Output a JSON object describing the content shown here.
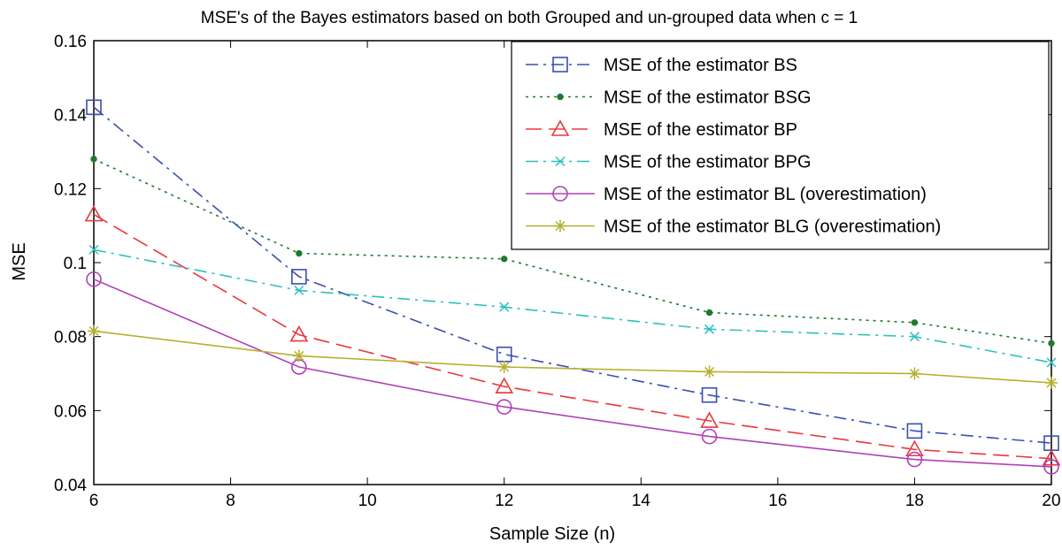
{
  "chart_data": {
    "type": "line",
    "title": "MSE's of the Bayes estimators based on both Grouped and un-grouped data when c = 1",
    "xlabel": "Sample Size (n)",
    "ylabel": "MSE",
    "xlim": [
      6,
      20
    ],
    "ylim": [
      0.04,
      0.16
    ],
    "xticks": [
      6,
      8,
      10,
      12,
      14,
      16,
      18,
      20
    ],
    "xtick_labels": [
      "6",
      "8",
      "10",
      "12",
      "14",
      "16",
      "18",
      "20"
    ],
    "yticks": [
      0.04,
      0.06,
      0.08,
      0.1,
      0.12,
      0.14,
      0.16
    ],
    "ytick_labels": [
      "0.04",
      "0.06",
      "0.08",
      "0.1",
      "0.12",
      "0.14",
      "0.16"
    ],
    "grid": false,
    "legend_position": "top-right",
    "x": [
      6,
      9,
      12,
      15,
      18,
      20
    ],
    "series": [
      {
        "name": "MSE of the estimator BS",
        "color": "#3a4fb0",
        "dash": "dash-dot",
        "marker": "square",
        "values": [
          0.142,
          0.0962,
          0.0752,
          0.0642,
          0.0545,
          0.0512
        ]
      },
      {
        "name": "MSE of the estimator BSG",
        "color": "#1f7a2e",
        "dash": "dotted",
        "marker": "dot",
        "values": [
          0.128,
          0.1025,
          0.101,
          0.0865,
          0.0838,
          0.0782
        ]
      },
      {
        "name": "MSE of the estimator BP",
        "color": "#e8383d",
        "dash": "dashed",
        "marker": "triangle",
        "values": [
          0.113,
          0.0805,
          0.0665,
          0.0572,
          0.0495,
          0.047
        ]
      },
      {
        "name": "MSE of the estimator BPG",
        "color": "#2ebfbf",
        "dash": "dash-dot",
        "marker": "x",
        "values": [
          0.1035,
          0.0925,
          0.088,
          0.082,
          0.08,
          0.073
        ]
      },
      {
        "name": "MSE of the estimator BL (overestimation)",
        "color": "#b040b8",
        "dash": "solid",
        "marker": "circle",
        "values": [
          0.0955,
          0.0718,
          0.061,
          0.053,
          0.0468,
          0.0448
        ]
      },
      {
        "name": "MSE of the estimator BLG (overestimation)",
        "color": "#b5b02e",
        "dash": "solid",
        "marker": "star",
        "values": [
          0.0815,
          0.0748,
          0.0718,
          0.0705,
          0.07,
          0.0675
        ]
      }
    ]
  }
}
